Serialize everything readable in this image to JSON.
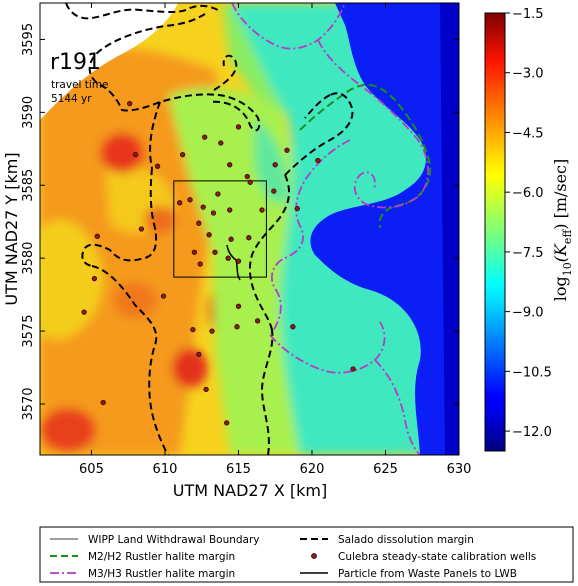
{
  "chart_data": {
    "type": "heatmap",
    "title": "",
    "annotation": {
      "run_id": "r191",
      "line1": "travel time",
      "line2": "5144 yr"
    },
    "xlabel": "UTM NAD27 X [km]",
    "ylabel": "UTM NAD27 Y [km]",
    "xlim": [
      601.5,
      630
    ],
    "ylim": [
      3566.5,
      3597.5
    ],
    "x_ticks": [
      605,
      610,
      615,
      620,
      625,
      630
    ],
    "y_ticks": [
      3570,
      3575,
      3580,
      3585,
      3590,
      3595
    ],
    "grid": false,
    "colorbar": {
      "label_prefix": "log",
      "label_sub": "10",
      "label_var": "(K",
      "label_var_sub": "eff",
      "label_units": ") [m/sec]",
      "ticks": [
        -1.5,
        -3.0,
        -4.5,
        -6.0,
        -7.5,
        -9.0,
        -10.5,
        -12.0
      ],
      "range": [
        -12.5,
        -1.5
      ],
      "colormap": "jet"
    },
    "wipp_boundary": {
      "x": [
        610.6,
        616.9
      ],
      "y": [
        3578.7,
        3585.3
      ]
    },
    "wells": [
      [
        607.6,
        3590.6
      ],
      [
        609.5,
        3586.3
      ],
      [
        611.2,
        3587.1
      ],
      [
        612.7,
        3588.3
      ],
      [
        613.8,
        3587.9
      ],
      [
        614.4,
        3586.4
      ],
      [
        615.0,
        3589.0
      ],
      [
        608.4,
        3582.0
      ],
      [
        611.0,
        3583.8
      ],
      [
        611.7,
        3584.0
      ],
      [
        612.6,
        3583.5
      ],
      [
        613.3,
        3583.1
      ],
      [
        612.3,
        3582.4
      ],
      [
        613.0,
        3581.6
      ],
      [
        614.5,
        3581.3
      ],
      [
        613.4,
        3580.4
      ],
      [
        614.3,
        3580.0
      ],
      [
        612.0,
        3580.4
      ],
      [
        612.4,
        3579.6
      ],
      [
        615.0,
        3579.8
      ],
      [
        615.7,
        3581.4
      ],
      [
        616.6,
        3583.3
      ],
      [
        617.4,
        3584.6
      ],
      [
        619.0,
        3583.4
      ],
      [
        618.3,
        3587.4
      ],
      [
        615.6,
        3585.6
      ],
      [
        613.6,
        3584.4
      ],
      [
        614.4,
        3583.3
      ],
      [
        605.4,
        3581.5
      ],
      [
        605.2,
        3578.6
      ],
      [
        604.5,
        3576.3
      ],
      [
        608.0,
        3587.1
      ],
      [
        611.9,
        3575.1
      ],
      [
        613.2,
        3575.0
      ],
      [
        615.0,
        3576.7
      ],
      [
        614.9,
        3575.3
      ],
      [
        618.7,
        3575.3
      ],
      [
        616.3,
        3575.7
      ],
      [
        612.8,
        3571.0
      ],
      [
        614.2,
        3568.7
      ],
      [
        605.8,
        3570.1
      ],
      [
        620.4,
        3586.7
      ],
      [
        622.8,
        3572.4
      ],
      [
        615.8,
        3585.2
      ],
      [
        617.5,
        3586.4
      ],
      [
        612.3,
        3573.4
      ],
      [
        609.9,
        3577.4
      ]
    ]
  },
  "legend": {
    "items": [
      {
        "label": "WIPP Land Withdrawal Boundary",
        "style": "solid-thin"
      },
      {
        "label": "Salado dissolution margin",
        "style": "dashed-black"
      },
      {
        "label": "M2/H2 Rustler halite margin",
        "style": "dashed-green"
      },
      {
        "label": "Culebra steady-state calibration wells",
        "style": "dot"
      },
      {
        "label": "M3/H3 Rustler halite margin",
        "style": "dashdot-magenta"
      },
      {
        "label": "Particle from Waste Panels to LWB",
        "style": "solid"
      }
    ]
  },
  "colors": {
    "m2_h2": "#1a8f1a",
    "m3_h3": "#b43cc8",
    "salado": "#000000",
    "well_face": "#8c1a1a",
    "well_edge": "#2a0505"
  }
}
